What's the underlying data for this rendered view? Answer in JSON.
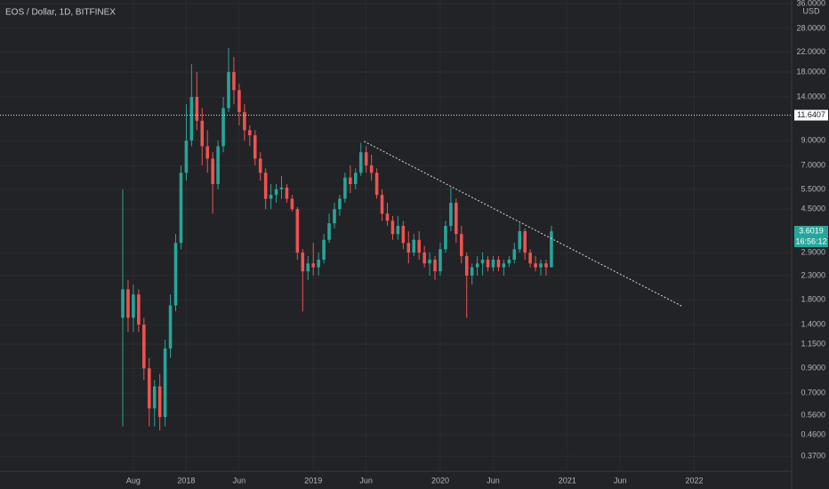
{
  "chart_data": {
    "type": "candlestick",
    "title": "EOS / Dollar, 1D, BITFINEX",
    "y_unit": "USD",
    "log_scale": true,
    "grid": true,
    "up_color": "#26a69a",
    "down_color": "#ef5350",
    "xlim": [
      -12.6,
      62.2
    ],
    "xticks": [
      {
        "value": 0,
        "label": "Aug"
      },
      {
        "value": 5,
        "label": "2018"
      },
      {
        "value": 10,
        "label": "Jun"
      },
      {
        "value": 17,
        "label": "2019"
      },
      {
        "value": 22,
        "label": "Jun"
      },
      {
        "value": 29,
        "label": "2020"
      },
      {
        "value": 34,
        "label": "Jun"
      },
      {
        "value": 41,
        "label": "2021"
      },
      {
        "value": 46,
        "label": "Jun"
      },
      {
        "value": 53,
        "label": "2022"
      }
    ],
    "ylim": [
      0.318,
      37.3
    ],
    "yticks": [
      {
        "value": 36,
        "label": "36.0000"
      },
      {
        "value": 28,
        "label": "28.0000"
      },
      {
        "value": 22,
        "label": "22.0000"
      },
      {
        "value": 18,
        "label": "18.0000"
      },
      {
        "value": 14,
        "label": "14.0000"
      },
      {
        "value": 9,
        "label": "9.0000"
      },
      {
        "value": 7,
        "label": "7.0000"
      },
      {
        "value": 5.5,
        "label": "5.5000"
      },
      {
        "value": 4.5,
        "label": "4.5000"
      },
      {
        "value": 2.9,
        "label": "2.9000"
      },
      {
        "value": 2.3,
        "label": "2.3000"
      },
      {
        "value": 1.8,
        "label": "1.8000"
      },
      {
        "value": 1.4,
        "label": "1.4000"
      },
      {
        "value": 1.15,
        "label": "1.1500"
      },
      {
        "value": 0.9,
        "label": "0.9000"
      },
      {
        "value": 0.7,
        "label": "0.7000"
      },
      {
        "value": 0.56,
        "label": "0.5600"
      },
      {
        "value": 0.46,
        "label": "0.4600"
      },
      {
        "value": 0.37,
        "label": "0.3700"
      }
    ],
    "x": [
      -1,
      -0.5,
      0,
      0.5,
      1,
      1.5,
      2,
      2.5,
      3,
      3.5,
      4,
      4.5,
      5,
      5.5,
      6,
      6.5,
      7,
      7.5,
      8,
      8.5,
      9,
      9.5,
      10,
      10.5,
      11,
      11.5,
      12,
      12.5,
      13,
      13.5,
      14,
      14.5,
      15,
      15.5,
      16,
      16.5,
      17,
      17.5,
      18,
      18.5,
      19,
      19.5,
      20,
      20.5,
      21,
      21.5,
      22,
      22.5,
      23,
      23.5,
      24,
      24.5,
      25,
      25.5,
      26,
      26.5,
      27,
      27.5,
      28,
      28.5,
      29,
      29.5,
      30,
      30.5,
      31,
      31.5,
      32,
      32.5,
      33,
      33.5,
      34,
      34.5,
      35,
      35.5,
      36,
      36.5,
      37,
      37.5,
      38,
      38.5,
      39,
      39.5
    ],
    "open": [
      1.5,
      2.0,
      1.5,
      1.9,
      1.4,
      0.9,
      0.6,
      0.75,
      0.55,
      1.1,
      1.7,
      3.2,
      6.5,
      9,
      14,
      11,
      8.5,
      7.5,
      5.8,
      8.5,
      12.5,
      18,
      15,
      12,
      10,
      9.5,
      7.5,
      6.5,
      5,
      5.2,
      5.5,
      5.6,
      5.0,
      4.5,
      2.9,
      2.4,
      2.6,
      2.5,
      2.7,
      3.3,
      3.9,
      4.5,
      5.0,
      6.2,
      5.8,
      6.5,
      8.0,
      7,
      6.5,
      5.2,
      4.3,
      4.0,
      3.5,
      3.8,
      3.2,
      2.9,
      3.3,
      2.9,
      2.6,
      2.7,
      2.4,
      3.0,
      3.8,
      4.8,
      3.5,
      2.8,
      2.3,
      2.5,
      2.6,
      2.7,
      2.5,
      2.7,
      2.5,
      2.6,
      2.7,
      3.0,
      3.6,
      2.9,
      2.6,
      2.5,
      2.6,
      2.5
    ],
    "high": [
      5.5,
      2.2,
      2.1,
      2.0,
      1.5,
      1.0,
      0.8,
      0.85,
      1.2,
      1.9,
      3.5,
      7,
      13,
      19.5,
      18,
      12.5,
      10,
      8,
      9,
      14,
      23,
      21,
      16,
      13,
      10.5,
      10,
      8,
      6.8,
      5.8,
      5.8,
      6.3,
      5.8,
      5.2,
      4.6,
      3.0,
      2.8,
      3.2,
      2.9,
      3.5,
      4.3,
      4.8,
      5.2,
      6.5,
      7,
      6.8,
      8.8,
      8.5,
      7.8,
      6.8,
      5.5,
      4.8,
      4.2,
      4.2,
      4.0,
      3.6,
      3.5,
      3.6,
      3.1,
      2.9,
      2.8,
      3.2,
      4.0,
      5.6,
      5.0,
      3.8,
      2.9,
      2.6,
      2.8,
      2.9,
      2.8,
      2.8,
      2.8,
      2.7,
      2.8,
      3.2,
      3.9,
      3.7,
      3.0,
      2.8,
      2.7,
      2.7,
      3.8
    ],
    "low": [
      0.5,
      1.3,
      1.3,
      1.3,
      0.8,
      0.5,
      0.5,
      0.48,
      0.5,
      1.0,
      1.6,
      3,
      6,
      8.5,
      10,
      7,
      6.5,
      4.3,
      5.5,
      8,
      12,
      13,
      10.5,
      9,
      8.5,
      7,
      6,
      4.5,
      4.5,
      4.8,
      5,
      4.8,
      4.4,
      2.7,
      1.6,
      2.2,
      2.3,
      2.3,
      2.6,
      3.2,
      3.7,
      4.2,
      4.8,
      5.3,
      5.5,
      6.3,
      6.5,
      6,
      5,
      4.0,
      3.8,
      3.3,
      3.3,
      3.0,
      2.6,
      2.8,
      2.7,
      2.5,
      2.3,
      2.2,
      2.3,
      2.9,
      3.6,
      3.2,
      2.6,
      1.5,
      2.1,
      2.3,
      2.3,
      2.4,
      2.4,
      2.4,
      2.3,
      2.5,
      2.6,
      2.9,
      2.7,
      2.5,
      2.4,
      2.3,
      2.3,
      2.5
    ],
    "close": [
      2.0,
      1.5,
      1.9,
      1.4,
      0.9,
      0.6,
      0.75,
      0.55,
      1.1,
      1.7,
      3.2,
      6.5,
      9,
      14,
      11,
      8.5,
      7.5,
      5.8,
      8.5,
      12.5,
      18,
      15,
      12,
      10,
      9.5,
      7.5,
      6.5,
      5,
      5.2,
      5.5,
      5.6,
      5.0,
      4.5,
      2.9,
      2.4,
      2.6,
      2.5,
      2.7,
      3.3,
      3.9,
      4.5,
      5.0,
      6.2,
      5.8,
      6.5,
      8.0,
      7,
      6.5,
      5.2,
      4.3,
      4.0,
      3.5,
      3.8,
      3.2,
      2.9,
      3.3,
      2.9,
      2.6,
      2.7,
      2.4,
      3.0,
      3.8,
      4.8,
      3.5,
      2.8,
      2.3,
      2.5,
      2.6,
      2.7,
      2.5,
      2.7,
      2.5,
      2.6,
      2.7,
      3.0,
      3.6,
      2.9,
      2.6,
      2.5,
      2.6,
      2.5,
      3.6
    ],
    "trend_line": {
      "x": [
        21.8,
        51.8
      ],
      "y": [
        8.93,
        1.69
      ]
    },
    "horizontal_line": 11.6407,
    "current_price": 3.6019,
    "countdown": "16:56:12"
  }
}
